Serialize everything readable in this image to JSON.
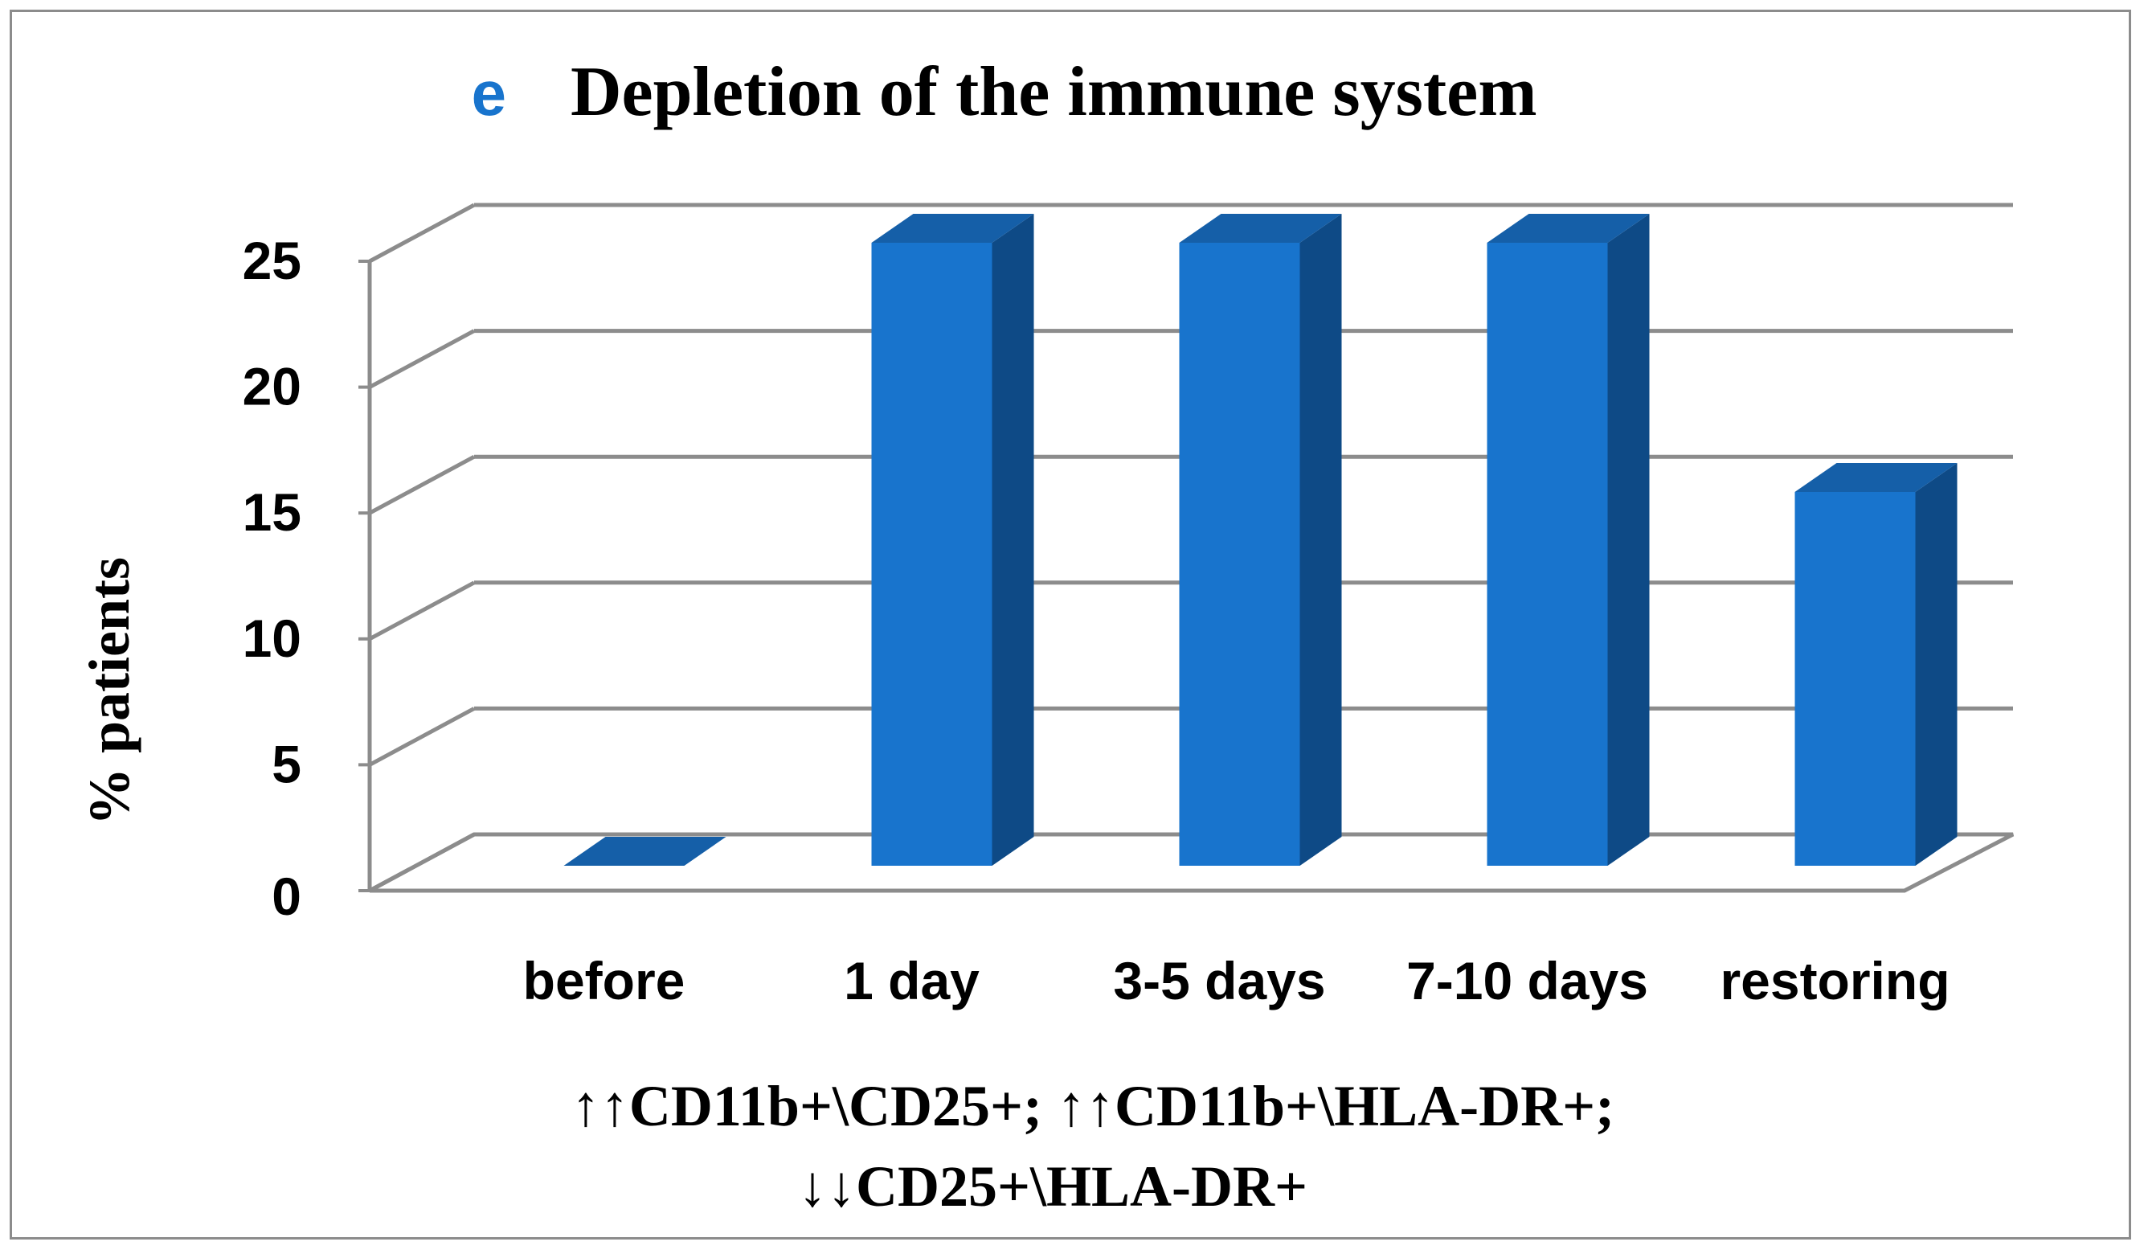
{
  "chart_data": {
    "type": "bar",
    "panel_letter": "e",
    "title": "Depletion of the immune system",
    "ylabel": "% patients",
    "xlabel_lines": [
      "↑↑CD11b+\\CD25+; ↑↑CD11b+\\HLA-DR+;",
      "↓↓CD25+\\HLA-DR+"
    ],
    "categories": [
      "before",
      "1 day",
      "3-5 days",
      "7-10 days",
      "restoring"
    ],
    "values": [
      0,
      25,
      25,
      25,
      15
    ],
    "ylim": [
      0,
      25
    ],
    "yticks": [
      "0",
      "5",
      "10",
      "15",
      "20",
      "25"
    ],
    "grid": true,
    "legend": "none",
    "three_d": true
  },
  "colors": {
    "bar_front": "#1874CD",
    "bar_side": "#0E4A86",
    "bar_top": "#155FA8",
    "grid": "#8C8C8C",
    "panel_letter": "#1874CD",
    "text": "#000000"
  }
}
